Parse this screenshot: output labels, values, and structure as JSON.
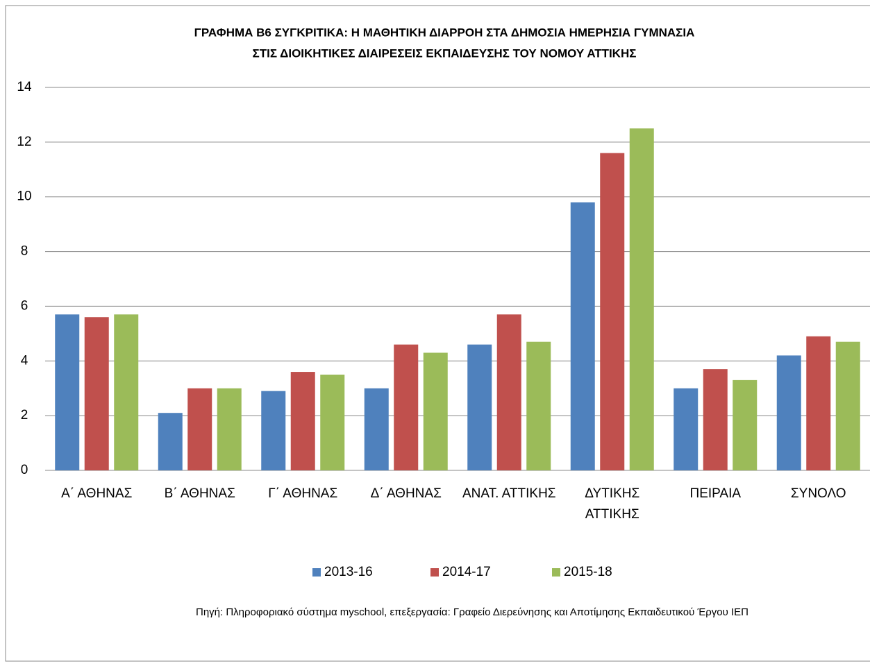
{
  "chart_data": {
    "type": "bar",
    "title": [
      "ΓΡΑΦΗΜΑ Β6 ΣΥΓΚΡΙΤΙΚΑ: Η ΜΑΘΗΤΙΚΗ ΔΙΑΡΡΟΗ ΣΤΑ ΔΗΜΟΣΙΑ ΗΜΕΡΗΣΙΑ ΓΥΜΝΑΣΙΑ",
      "ΣΤΙΣ ΔΙΟΙΚΗΤΙΚΕΣ ΔΙΑΙΡΕΣΕΙΣ ΕΚΠΑΙΔΕΥΣΗΣ ΤΟΥ ΝΟΜΟΥ ΑΤΤΙΚΗΣ"
    ],
    "categories": [
      "Α΄ ΑΘΗΝΑΣ",
      "Β΄ ΑΘΗΝΑΣ",
      "Γ΄ ΑΘΗΝΑΣ",
      "Δ΄ ΑΘΗΝΑΣ",
      "ΑΝΑΤ. ΑΤΤΙΚΗΣ",
      "ΔΥΤΙΚΗΣ ΑΤΤΙΚΗΣ",
      "ΠΕΙΡΑΙΑ",
      "ΣΥΝΟΛΟ"
    ],
    "series": [
      {
        "name": "2013-16",
        "color": "#4f81bd",
        "values": [
          5.7,
          2.1,
          2.9,
          3.0,
          4.6,
          9.8,
          3.0,
          4.2
        ]
      },
      {
        "name": "2014-17",
        "color": "#c0504d",
        "values": [
          5.6,
          3.0,
          3.6,
          4.6,
          5.7,
          11.6,
          3.7,
          4.9
        ]
      },
      {
        "name": "2015-18",
        "color": "#9bbb59",
        "values": [
          5.7,
          3.0,
          3.5,
          4.3,
          4.7,
          12.5,
          3.3,
          4.7
        ]
      }
    ],
    "ylim": [
      0,
      14
    ],
    "yticks": [
      0,
      2,
      4,
      6,
      8,
      10,
      12,
      14
    ],
    "grid": true,
    "legend": "bottom",
    "source": "Πηγή: Πληροφοριακό σύστημα myschool, επεξεργασία: Γραφείο Διερεύνησης και Αποτίμησης Εκπαιδευτικού Έργου ΙΕΠ"
  }
}
